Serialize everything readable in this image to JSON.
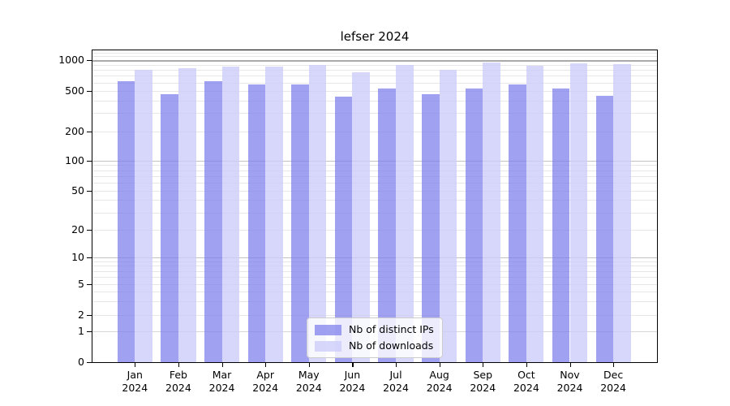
{
  "chart_data": {
    "type": "bar",
    "title": "lefser 2024",
    "categories": [
      {
        "month": "Jan",
        "year": "2024"
      },
      {
        "month": "Feb",
        "year": "2024"
      },
      {
        "month": "Mar",
        "year": "2024"
      },
      {
        "month": "Apr",
        "year": "2024"
      },
      {
        "month": "May",
        "year": "2024"
      },
      {
        "month": "Jun",
        "year": "2024"
      },
      {
        "month": "Jul",
        "year": "2024"
      },
      {
        "month": "Aug",
        "year": "2024"
      },
      {
        "month": "Sep",
        "year": "2024"
      },
      {
        "month": "Oct",
        "year": "2024"
      },
      {
        "month": "Nov",
        "year": "2024"
      },
      {
        "month": "Dec",
        "year": "2024"
      }
    ],
    "series": [
      {
        "name": "Nb of distinct IPs",
        "key": "distinct-ips",
        "color": "rgba(125,125,235,0.72)",
        "values": [
          620,
          460,
          615,
          570,
          580,
          435,
          520,
          457,
          528,
          570,
          520,
          445
        ]
      },
      {
        "name": "Nb of downloads",
        "key": "downloads",
        "color": "rgba(205,205,250,0.80)",
        "values": [
          805,
          830,
          860,
          865,
          905,
          760,
          900,
          810,
          945,
          880,
          925,
          910
        ]
      }
    ],
    "yticks": [
      0,
      1,
      2,
      5,
      10,
      20,
      50,
      100,
      200,
      500,
      1000
    ],
    "xlabel": "",
    "ylabel": "",
    "ylim": [
      0,
      1280
    ],
    "scale": "symlog",
    "grid": true,
    "legend_position": "bottom-center",
    "colors": {
      "major_gridline": "#aaaaaa",
      "mid_gridline": "#c3c3c3",
      "minor_gridline": "#e7e7e7",
      "axis": "#000000",
      "background": "#ffffff"
    }
  }
}
